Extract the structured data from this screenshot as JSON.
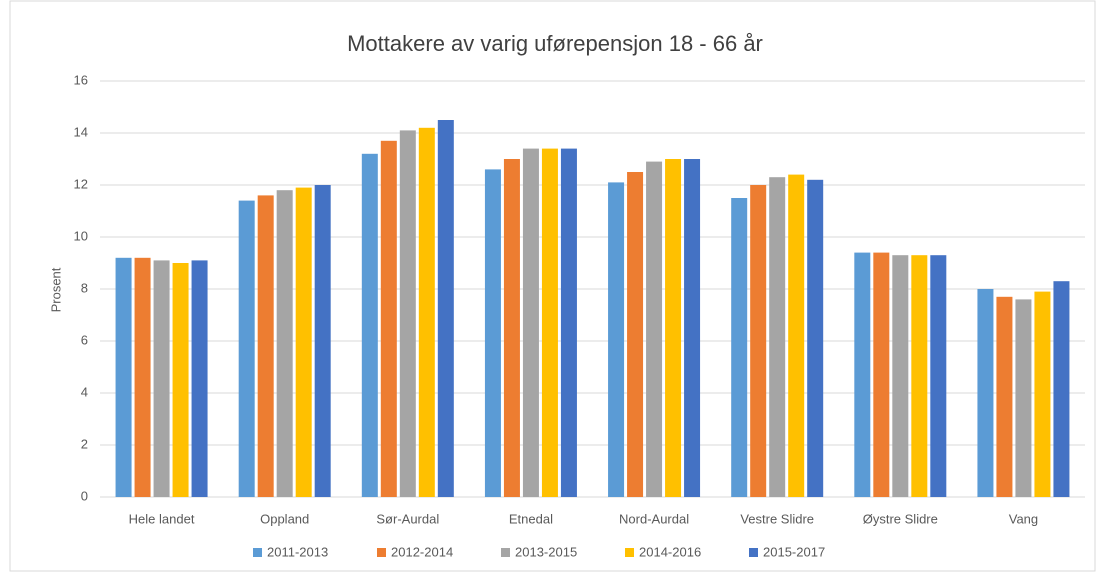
{
  "chart_data": {
    "type": "bar",
    "title": "Mottakere av varig uførepensjon 18 - 66 år",
    "y_label": "Prosent",
    "categories": [
      "Hele landet",
      "Oppland",
      "Sør-Aurdal",
      "Etnedal",
      "Nord-Aurdal",
      "Vestre Slidre",
      "Øystre Slidre",
      "Vang"
    ],
    "series": [
      {
        "name": "2011-2013",
        "color": "#5b9bd5",
        "values": [
          9.2,
          11.4,
          13.2,
          12.6,
          12.1,
          11.5,
          9.4,
          8.0
        ]
      },
      {
        "name": "2012-2014",
        "color": "#ed7d31",
        "values": [
          9.2,
          11.6,
          13.7,
          13.0,
          12.5,
          12.0,
          9.4,
          7.7
        ]
      },
      {
        "name": "2013-2015",
        "color": "#a5a5a5",
        "values": [
          9.1,
          11.8,
          14.1,
          13.4,
          12.9,
          12.3,
          9.3,
          7.6
        ]
      },
      {
        "name": "2014-2016",
        "color": "#ffc000",
        "values": [
          9.0,
          11.9,
          14.2,
          13.4,
          13.0,
          12.4,
          9.3,
          7.9
        ]
      },
      {
        "name": "2015-2017",
        "color": "#4472c4",
        "values": [
          9.1,
          12.0,
          14.5,
          13.4,
          13.0,
          12.2,
          9.3,
          8.3
        ]
      }
    ],
    "ylim": [
      0,
      16
    ],
    "yticks": [
      0,
      2,
      4,
      6,
      8,
      10,
      12,
      14,
      16
    ],
    "grid": true,
    "legend": "bottom"
  }
}
